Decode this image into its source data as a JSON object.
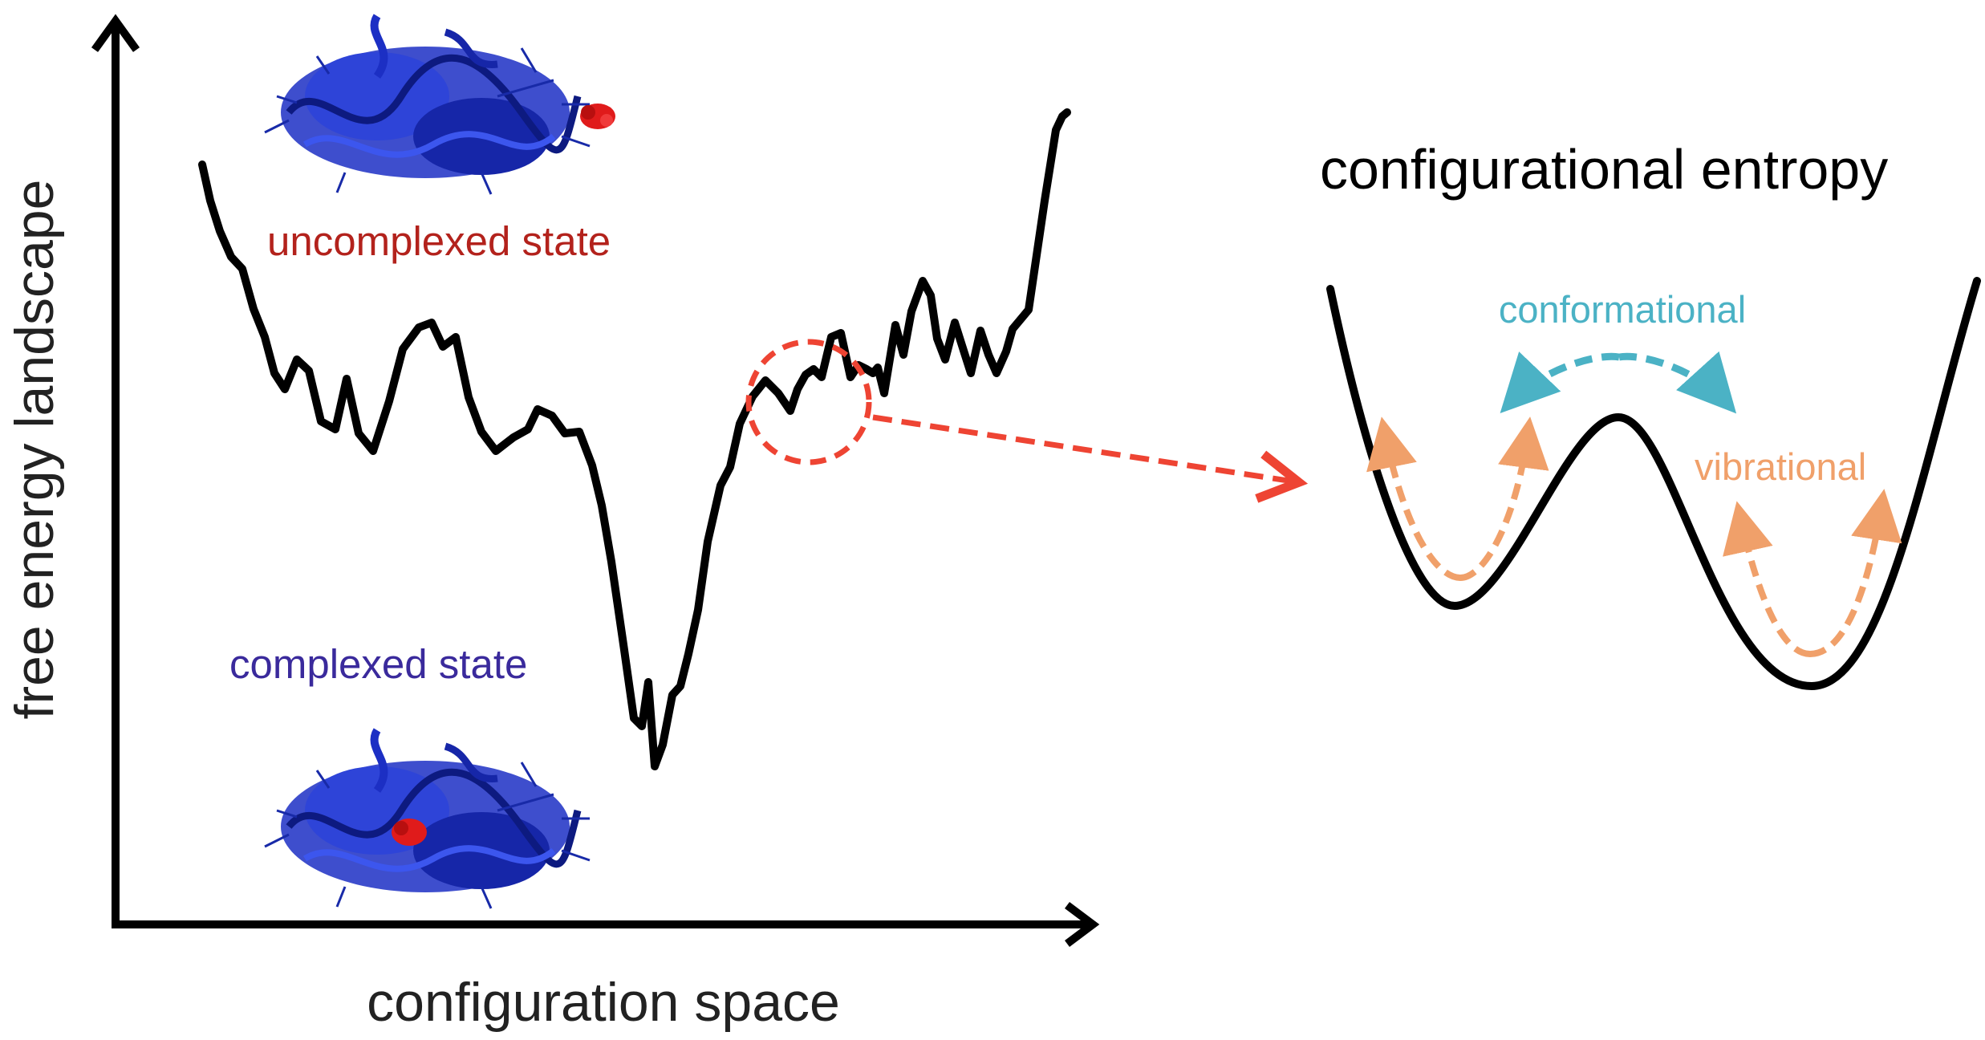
{
  "left_panel": {
    "y_axis_label": "free energy landscape",
    "x_axis_label": "configuration space",
    "uncomplexed_label": "uncomplexed state",
    "complexed_label": "complexed state"
  },
  "right_panel": {
    "title": "configurational entropy",
    "conformational_label": "conformational",
    "vibrational_label": "vibrational"
  },
  "colors": {
    "curve": "#000000",
    "uncomplexed_text": "#b3221c",
    "complexed_text": "#3a2a9c",
    "zoom_indicator": "#ee4433",
    "conformational": "#4bb2c5",
    "vibrational": "#f0a06a",
    "protein": "#1c2fc4",
    "ligand": "#e01b1b"
  },
  "icons": {
    "uncomplexed_structure": "protein-ribbon-with-separate-ligand",
    "complexed_structure": "protein-ribbon-with-bound-ligand"
  }
}
